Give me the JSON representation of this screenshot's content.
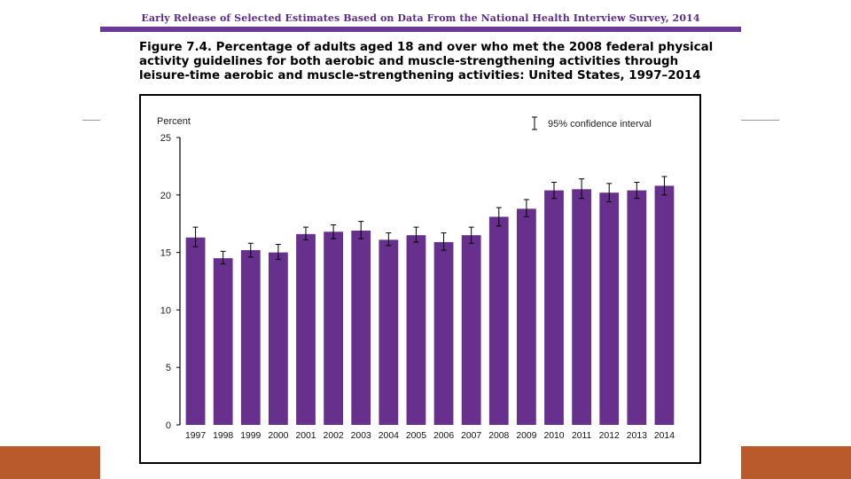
{
  "header": {
    "publication": "Early Release of Selected Estimates Based on Data From the National Health Interview Survey, 2014"
  },
  "figure": {
    "title": "Figure 7.4. Percentage of adults aged 18 and over who met the 2008 federal physical activity guidelines for both aerobic and muscle-strengthening activities through leisure-time aerobic and muscle-strengthening activities: United States, 1997–2014"
  },
  "colors": {
    "bar": "#66308c",
    "header_accent": "#6a3a94",
    "slide_accent": "#b85a2b"
  },
  "chart_data": {
    "type": "bar",
    "title": "",
    "xlabel": "",
    "ylabel": "Percent",
    "ylim": [
      0,
      25
    ],
    "yticks": [
      0,
      5,
      10,
      15,
      20,
      25
    ],
    "grid": false,
    "legend": {
      "label": "95% confidence interval",
      "placement": "top-right"
    },
    "categories": [
      "1997",
      "1998",
      "1999",
      "2000",
      "2001",
      "2002",
      "2003",
      "2004",
      "2005",
      "2006",
      "2007",
      "2008",
      "2009",
      "2010",
      "2011",
      "2012",
      "2013",
      "2014"
    ],
    "values": [
      16.3,
      14.5,
      15.2,
      15.0,
      16.6,
      16.8,
      16.9,
      16.1,
      16.5,
      15.9,
      16.5,
      18.1,
      18.8,
      20.4,
      20.5,
      20.2,
      20.4,
      20.8
    ],
    "ci_lower": [
      15.5,
      14.0,
      14.6,
      14.4,
      16.1,
      16.2,
      16.2,
      15.6,
      15.9,
      15.2,
      15.8,
      17.3,
      18.1,
      19.7,
      19.7,
      19.4,
      19.7,
      20.0
    ],
    "ci_upper": [
      17.2,
      15.1,
      15.8,
      15.7,
      17.2,
      17.4,
      17.7,
      16.7,
      17.2,
      16.7,
      17.2,
      18.9,
      19.6,
      21.1,
      21.4,
      21.0,
      21.1,
      21.6
    ]
  }
}
